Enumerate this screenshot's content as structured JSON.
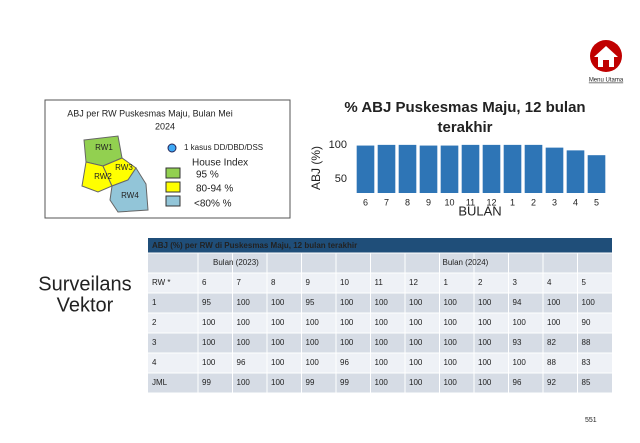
{
  "chart_data": {
    "type": "bar",
    "title": "% ABJ Puskesmas Maju, 12 bulan terakhir",
    "x_label": "BULAN",
    "y_label": "ABJ (%)",
    "categories": [
      "6",
      "7",
      "8",
      "9",
      "10",
      "11",
      "12",
      "1",
      "2",
      "3",
      "4",
      "5"
    ],
    "values": [
      99,
      100,
      100,
      99,
      99,
      100,
      100,
      100,
      100,
      96,
      92,
      85
    ],
    "color": "#2e75b6",
    "ylim": [
      30,
      110
    ],
    "yticks": [
      50,
      100
    ],
    "grid": false
  },
  "menu": {
    "label": "Menu Utama"
  },
  "side_title": [
    "Surveilans",
    "Vektor"
  ],
  "map": {
    "title": [
      "ABJ  per RW Puskesmas Maju, Bulan Mei",
      "2024"
    ],
    "areas": [
      "RW1",
      "RW2",
      "RW3",
      "RW4"
    ],
    "case_legend": "1 kasus DD/DBD/DSS",
    "legend_title": "House Index",
    "legend": [
      "95 %",
      "80-94 %",
      "<80%  %"
    ]
  },
  "table": {
    "title": "ABJ (%) per RW di Puskesmas Maju, 12 bulan terakhir",
    "year_labels": [
      "Bulan  (2023)",
      "Bulan (2024)"
    ],
    "header": [
      "RW *",
      "6",
      "7",
      "8",
      "9",
      "10",
      "11",
      "12",
      "1",
      "2",
      "3",
      "4",
      "5"
    ],
    "rows": [
      [
        "1",
        95,
        100,
        100,
        95,
        100,
        100,
        100,
        100,
        100,
        94,
        100,
        100
      ],
      [
        "2",
        100,
        100,
        100,
        100,
        100,
        100,
        100,
        100,
        100,
        100,
        100,
        90
      ],
      [
        "3",
        100,
        100,
        100,
        100,
        100,
        100,
        100,
        100,
        100,
        93,
        82,
        88
      ],
      [
        "4",
        100,
        96,
        100,
        100,
        96,
        100,
        100,
        100,
        100,
        100,
        88,
        83
      ],
      [
        "JML",
        99,
        100,
        100,
        99,
        99,
        100,
        100,
        100,
        100,
        96,
        92,
        85
      ]
    ],
    "highlight": {
      "below": 95,
      "color": "#e02020"
    }
  },
  "page_number": "551"
}
